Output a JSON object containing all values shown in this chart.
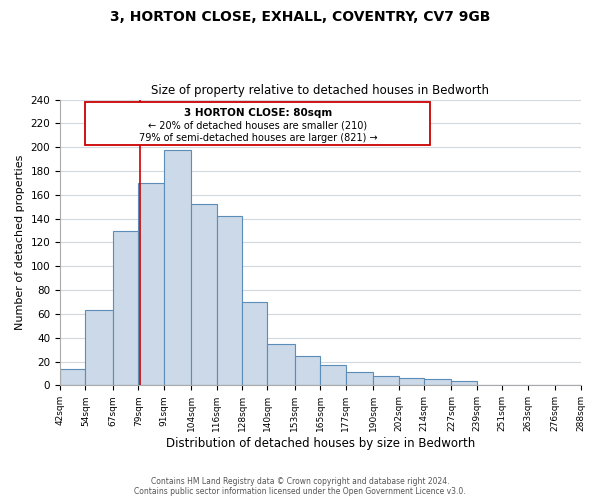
{
  "title": "3, HORTON CLOSE, EXHALL, COVENTRY, CV7 9GB",
  "subtitle": "Size of property relative to detached houses in Bedworth",
  "xlabel": "Distribution of detached houses by size in Bedworth",
  "ylabel": "Number of detached properties",
  "bar_edges": [
    42,
    54,
    67,
    79,
    91,
    104,
    116,
    128,
    140,
    153,
    165,
    177,
    190,
    202,
    214,
    227,
    239,
    251,
    263,
    276,
    288
  ],
  "bar_heights": [
    14,
    63,
    130,
    170,
    198,
    152,
    142,
    70,
    35,
    25,
    17,
    11,
    8,
    6,
    5,
    4,
    0,
    0,
    0,
    0
  ],
  "bar_color": "#ccd9e8",
  "bar_edge_color": "#5b8db8",
  "property_line_x": 80,
  "property_line_color": "#cc0000",
  "annotation_box_color": "#cc0000",
  "annotation_title": "3 HORTON CLOSE: 80sqm",
  "annotation_line1": "← 20% of detached houses are smaller (210)",
  "annotation_line2": "79% of semi-detached houses are larger (821) →",
  "ylim": [
    0,
    240
  ],
  "xlim": [
    42,
    288
  ],
  "footer_line1": "Contains HM Land Registry data © Crown copyright and database right 2024.",
  "footer_line2": "Contains public sector information licensed under the Open Government Licence v3.0.",
  "tick_labels": [
    "42sqm",
    "54sqm",
    "67sqm",
    "79sqm",
    "91sqm",
    "104sqm",
    "116sqm",
    "128sqm",
    "140sqm",
    "153sqm",
    "165sqm",
    "177sqm",
    "190sqm",
    "202sqm",
    "214sqm",
    "227sqm",
    "239sqm",
    "251sqm",
    "263sqm",
    "276sqm",
    "288sqm"
  ],
  "yticks": [
    0,
    20,
    40,
    60,
    80,
    100,
    120,
    140,
    160,
    180,
    200,
    220,
    240
  ],
  "background_color": "#ffffff",
  "grid_color": "#d0d8e0"
}
